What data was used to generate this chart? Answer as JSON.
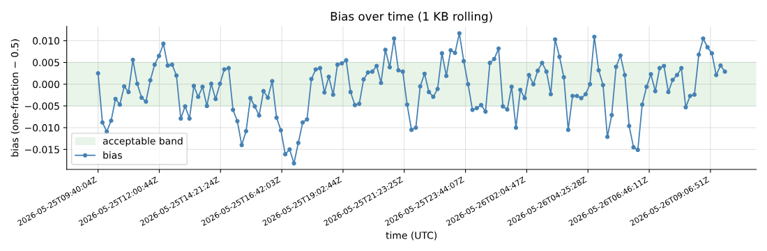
{
  "chart_data": {
    "type": "line",
    "title": "Bias over time (1 KB rolling)",
    "xlabel": "time (UTC)",
    "ylabel": "bias (one-fraction − 0.5)",
    "x": [
      "2026-05-25T09:40:04",
      "2026-05-25T09:50:04",
      "2026-05-25T10:00:04",
      "2026-05-25T10:10:04",
      "2026-05-25T10:20:04",
      "2026-05-25T10:30:04",
      "2026-05-25T10:40:04",
      "2026-05-25T10:50:04",
      "2026-05-25T11:00:04",
      "2026-05-25T11:10:04",
      "2026-05-25T11:20:04",
      "2026-05-25T11:30:04",
      "2026-05-25T11:40:04",
      "2026-05-25T11:50:04",
      "2026-05-25T12:00:04",
      "2026-05-25T12:10:04",
      "2026-05-25T12:20:04",
      "2026-05-25T12:30:04",
      "2026-05-25T12:40:04",
      "2026-05-25T12:50:04",
      "2026-05-25T13:00:04",
      "2026-05-25T13:10:04",
      "2026-05-25T13:20:04",
      "2026-05-25T13:30:04",
      "2026-05-25T13:40:04",
      "2026-05-25T13:50:04",
      "2026-05-25T14:00:04",
      "2026-05-25T14:10:04",
      "2026-05-25T14:20:04",
      "2026-05-25T14:30:04",
      "2026-05-25T14:40:04",
      "2026-05-25T14:50:04",
      "2026-05-25T15:00:04",
      "2026-05-25T15:10:04",
      "2026-05-25T15:20:04",
      "2026-05-25T15:30:04",
      "2026-05-25T15:40:04",
      "2026-05-25T15:50:04",
      "2026-05-25T16:00:04",
      "2026-05-25T16:10:04",
      "2026-05-25T16:20:04",
      "2026-05-25T16:30:04",
      "2026-05-25T16:40:04",
      "2026-05-25T16:50:04",
      "2026-05-25T17:00:04",
      "2026-05-25T17:10:04",
      "2026-05-25T17:20:04",
      "2026-05-25T17:30:04",
      "2026-05-25T17:40:04",
      "2026-05-25T17:50:04",
      "2026-05-25T18:00:04",
      "2026-05-25T18:10:04",
      "2026-05-25T18:20:04",
      "2026-05-25T18:30:04",
      "2026-05-25T18:40:04",
      "2026-05-25T18:50:04",
      "2026-05-25T19:00:04",
      "2026-05-25T19:10:04",
      "2026-05-25T19:20:04",
      "2026-05-25T19:30:04",
      "2026-05-25T19:40:04",
      "2026-05-25T19:50:04",
      "2026-05-25T20:00:04",
      "2026-05-25T20:10:04",
      "2026-05-25T20:20:04",
      "2026-05-25T20:30:04",
      "2026-05-25T20:40:04",
      "2026-05-25T20:50:04",
      "2026-05-25T21:00:04",
      "2026-05-25T21:10:04",
      "2026-05-25T21:20:04",
      "2026-05-25T21:30:04",
      "2026-05-25T21:40:04",
      "2026-05-25T21:50:04",
      "2026-05-25T22:00:04",
      "2026-05-25T22:10:04",
      "2026-05-25T22:20:04",
      "2026-05-25T22:30:04",
      "2026-05-25T22:40:04",
      "2026-05-25T22:50:04",
      "2026-05-25T23:00:04",
      "2026-05-25T23:10:04",
      "2026-05-25T23:20:04",
      "2026-05-25T23:30:04",
      "2026-05-25T23:40:04",
      "2026-05-25T23:50:04",
      "2026-05-26T00:00:04",
      "2026-05-26T00:10:04",
      "2026-05-26T00:20:04",
      "2026-05-26T00:30:04",
      "2026-05-26T00:40:04",
      "2026-05-26T00:50:04",
      "2026-05-26T01:00:04",
      "2026-05-26T01:10:04",
      "2026-05-26T01:20:04",
      "2026-05-26T01:30:04",
      "2026-05-26T01:40:04",
      "2026-05-26T01:50:04",
      "2026-05-26T02:00:04",
      "2026-05-26T02:10:04",
      "2026-05-26T02:20:04",
      "2026-05-26T02:30:04",
      "2026-05-26T02:40:04",
      "2026-05-26T02:50:04",
      "2026-05-26T03:00:04",
      "2026-05-26T03:10:04",
      "2026-05-26T03:20:04",
      "2026-05-26T03:30:04",
      "2026-05-26T03:40:04",
      "2026-05-26T03:50:04",
      "2026-05-26T04:00:04",
      "2026-05-26T04:10:04",
      "2026-05-26T04:20:04",
      "2026-05-26T04:30:04",
      "2026-05-26T04:40:04",
      "2026-05-26T04:50:04",
      "2026-05-26T05:00:04",
      "2026-05-26T05:10:04",
      "2026-05-26T05:20:04",
      "2026-05-26T05:30:04",
      "2026-05-26T05:40:04",
      "2026-05-26T05:50:04",
      "2026-05-26T06:00:04",
      "2026-05-26T06:10:04",
      "2026-05-26T06:20:04",
      "2026-05-26T06:30:04",
      "2026-05-26T06:40:04",
      "2026-05-26T06:50:04",
      "2026-05-26T07:00:04",
      "2026-05-26T07:10:04",
      "2026-05-26T07:20:04",
      "2026-05-26T07:30:04",
      "2026-05-26T07:40:04",
      "2026-05-26T07:50:04",
      "2026-05-26T08:00:04",
      "2026-05-26T08:10:04",
      "2026-05-26T08:20:04",
      "2026-05-26T08:30:04",
      "2026-05-26T08:40:04",
      "2026-05-26T08:50:04",
      "2026-05-26T09:00:04",
      "2026-05-26T09:10:04",
      "2026-05-26T09:20:04",
      "2026-05-26T09:30:04",
      "2026-05-26T09:40:04"
    ],
    "series": [
      {
        "name": "bias",
        "color": "#4682b4",
        "values": [
          0.0025,
          -0.0088,
          -0.0109,
          -0.0084,
          -0.0034,
          -0.0047,
          -0.0005,
          -0.0018,
          0.0056,
          0.0001,
          -0.0031,
          -0.004,
          0.0009,
          0.0045,
          0.0065,
          0.0093,
          0.0043,
          0.0045,
          0.002,
          -0.0079,
          -0.0051,
          -0.0079,
          -0.0004,
          -0.0029,
          -0.0006,
          -0.005,
          0.0001,
          -0.0034,
          0.0001,
          0.0034,
          0.0037,
          -0.0059,
          -0.0085,
          -0.014,
          -0.0108,
          -0.0032,
          -0.0051,
          -0.0072,
          -0.0016,
          -0.0031,
          0.0007,
          -0.0077,
          -0.0106,
          -0.0161,
          -0.015,
          -0.0182,
          -0.0135,
          -0.0088,
          -0.0081,
          0.0012,
          0.0034,
          0.0037,
          -0.0019,
          0.0017,
          -0.0024,
          0.0045,
          0.0048,
          0.0055,
          -0.0018,
          -0.0048,
          -0.0045,
          0.0011,
          0.0027,
          0.0029,
          0.0042,
          0.0003,
          0.0079,
          0.0039,
          0.0105,
          0.0032,
          0.0029,
          -0.0047,
          -0.0105,
          -0.01,
          -0.0005,
          0.0024,
          -0.0018,
          -0.0029,
          -0.0011,
          0.0071,
          0.0019,
          0.0078,
          0.0072,
          0.0117,
          0.0053,
          0.0,
          -0.0059,
          -0.0055,
          -0.0048,
          -0.0063,
          0.0049,
          0.0058,
          0.0082,
          -0.0051,
          -0.0058,
          -0.0006,
          -0.01,
          -0.0013,
          -0.0032,
          0.0021,
          0.0,
          0.0031,
          0.0049,
          0.0029,
          -0.0023,
          0.0103,
          0.0063,
          0.0016,
          -0.0105,
          -0.0027,
          -0.0027,
          -0.0032,
          -0.0023,
          0.0,
          0.0109,
          0.0032,
          -0.0002,
          -0.0121,
          -0.0071,
          0.004,
          0.0066,
          0.0021,
          -0.0096,
          -0.0145,
          -0.0151,
          -0.0047,
          -0.0006,
          0.0023,
          -0.0016,
          0.0037,
          0.0042,
          -0.0018,
          0.001,
          0.0021,
          0.0037,
          -0.0053,
          -0.0027,
          -0.0024,
          0.0068,
          0.0105,
          0.0085,
          0.0071,
          0.0021,
          0.0043,
          0.0029
        ]
      }
    ],
    "bands": [
      {
        "axis": "y",
        "from": -0.005,
        "to": 0.005,
        "label": "acceptable band",
        "color": "#2ca02c"
      }
    ],
    "xlim": [
      "2026-05-25T08:28:04",
      "2026-05-26T10:52:04"
    ],
    "xticks": [
      {
        "value": "2026-05-25T09:40:04",
        "label": "2026-05-25T09:40:04Z"
      },
      {
        "value": "2026-05-25T12:00:44",
        "label": "2026-05-25T12:00:44Z"
      },
      {
        "value": "2026-05-25T14:21:24",
        "label": "2026-05-25T14:21:24Z"
      },
      {
        "value": "2026-05-25T16:42:03",
        "label": "2026-05-25T16:42:03Z"
      },
      {
        "value": "2026-05-25T19:02:44",
        "label": "2026-05-25T19:02:44Z"
      },
      {
        "value": "2026-05-25T21:23:25",
        "label": "2026-05-25T21:23:25Z"
      },
      {
        "value": "2026-05-25T23:44:07",
        "label": "2026-05-25T23:44:07Z"
      },
      {
        "value": "2026-05-26T02:04:47",
        "label": "2026-05-26T02:04:47Z"
      },
      {
        "value": "2026-05-26T04:25:28",
        "label": "2026-05-26T04:25:28Z"
      },
      {
        "value": "2026-05-26T06:46:11",
        "label": "2026-05-26T06:46:11Z"
      },
      {
        "value": "2026-05-26T09:06:51",
        "label": "2026-05-26T09:06:51Z"
      }
    ],
    "ylim": [
      -0.0196,
      0.0133
    ],
    "yticks": [
      {
        "value": -0.015,
        "label": "−0.015"
      },
      {
        "value": -0.01,
        "label": "−0.010"
      },
      {
        "value": -0.005,
        "label": "−0.005"
      },
      {
        "value": 0,
        "label": "0.000"
      },
      {
        "value": 0.005,
        "label": "0.005"
      },
      {
        "value": 0.01,
        "label": "0.010"
      }
    ],
    "grid": true,
    "legend": "bottom left",
    "marker": "circle",
    "line_style": "solid"
  }
}
